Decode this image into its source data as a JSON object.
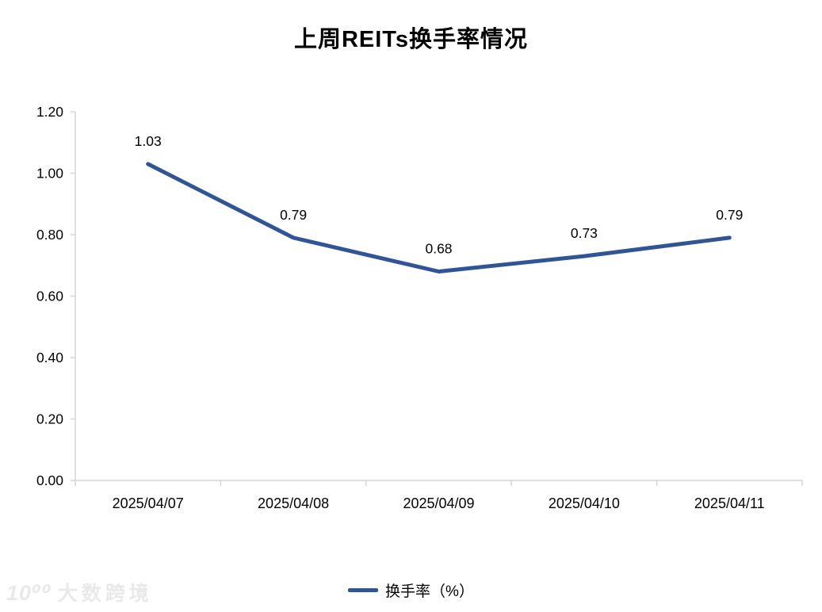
{
  "title": "上周REITs换手率情况",
  "chart_data": {
    "type": "line",
    "title": "上周REITs换手率情况",
    "categories": [
      "2025/04/07",
      "2025/04/08",
      "2025/04/09",
      "2025/04/10",
      "2025/04/11"
    ],
    "series": [
      {
        "name": "换手率（%）",
        "values": [
          1.03,
          0.79,
          0.68,
          0.73,
          0.79
        ]
      }
    ],
    "data_labels": [
      "1.03",
      "0.79",
      "0.68",
      "0.73",
      "0.79"
    ],
    "xlabel": "",
    "ylabel": "",
    "ylim": [
      0,
      1.2
    ],
    "yticks": [
      0.0,
      0.2,
      0.4,
      0.6,
      0.8,
      1.0,
      1.2
    ],
    "ytick_labels": [
      "0.00",
      "0.20",
      "0.40",
      "0.60",
      "0.80",
      "1.00",
      "1.20"
    ],
    "grid": false,
    "legend_position": "bottom",
    "line_color": "#2F5597",
    "axis_color": "#D6D6D6",
    "label_color": "#000000"
  },
  "legend": {
    "label": "换手率（%）"
  },
  "watermark": {
    "logo": "10⁰⁰",
    "text": "大数跨境"
  }
}
